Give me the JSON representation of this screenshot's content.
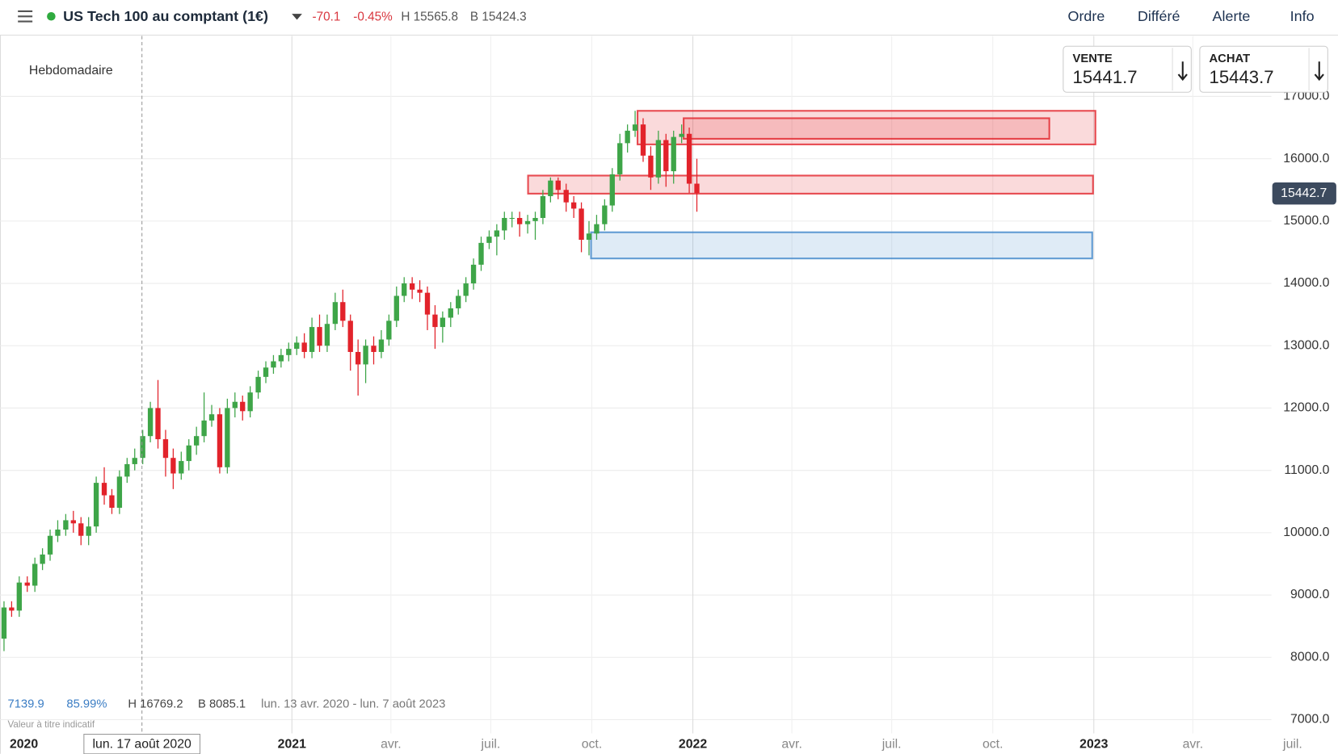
{
  "header": {
    "instrument": "US Tech 100 au comptant (1€)",
    "change": "-70.1",
    "change_pct": "-0.45%",
    "high": "H 15565.8",
    "low": "B 15424.3",
    "menu": [
      "Ordre",
      "Différé",
      "Alerte",
      "Info"
    ]
  },
  "timeframe": "Hebdomadaire",
  "quotes": [
    {
      "label": "VENTE",
      "price": "15441.7"
    },
    {
      "label": "ACHAT",
      "price": "15443.7"
    }
  ],
  "stats": [
    "7139.9",
    "85.99%",
    "H 16769.2",
    "B 8085.1",
    "lun. 13 avr. 2020 - lun. 7 août 2023"
  ],
  "disclaimer": "Valeur à titre indicatif",
  "chart_data": {
    "type": "candlestick",
    "up_color": "#3ea548",
    "down_color": "#e2232b",
    "grid": true,
    "x": [
      2020.282,
      2020.301,
      2020.32,
      2020.34,
      2020.359,
      2020.378,
      2020.397,
      2020.416,
      2020.436,
      2020.455,
      2020.474,
      2020.493,
      2020.512,
      2020.532,
      2020.551,
      2020.57,
      2020.589,
      2020.608,
      2020.628,
      2020.647,
      2020.666,
      2020.685,
      2020.704,
      2020.724,
      2020.743,
      2020.762,
      2020.781,
      2020.8,
      2020.82,
      2020.839,
      2020.858,
      2020.877,
      2020.896,
      2020.916,
      2020.935,
      2020.954,
      2020.973,
      2020.992,
      2021.012,
      2021.031,
      2021.05,
      2021.069,
      2021.088,
      2021.108,
      2021.127,
      2021.146,
      2021.165,
      2021.184,
      2021.204,
      2021.223,
      2021.242,
      2021.261,
      2021.28,
      2021.3,
      2021.319,
      2021.338,
      2021.357,
      2021.376,
      2021.396,
      2021.415,
      2021.434,
      2021.453,
      2021.472,
      2021.492,
      2021.511,
      2021.53,
      2021.549,
      2021.568,
      2021.588,
      2021.607,
      2021.626,
      2021.645,
      2021.664,
      2021.684,
      2021.703,
      2021.722,
      2021.741,
      2021.76,
      2021.78,
      2021.799,
      2021.818,
      2021.837,
      2021.856,
      2021.876,
      2021.895,
      2021.914,
      2021.933,
      2021.952,
      2021.972,
      2021.991,
      2022.01
    ],
    "open": [
      8300,
      8800,
      8750,
      9200,
      9150,
      9500,
      9650,
      9950,
      10050,
      10200,
      10150,
      9950,
      10100,
      10800,
      10600,
      10400,
      10900,
      11100,
      11200,
      11550,
      12000,
      11500,
      11200,
      10950,
      11150,
      11400,
      11550,
      11800,
      11900,
      11050,
      12000,
      12100,
      11950,
      12250,
      12500,
      12650,
      12750,
      12850,
      12950,
      13050,
      12900,
      13300,
      13000,
      13350,
      13700,
      13400,
      12900,
      12700,
      13000,
      12900,
      13100,
      13400,
      13800,
      14000,
      13900,
      13850,
      13500,
      13300,
      13450,
      13600,
      13800,
      14000,
      14300,
      14650,
      14750,
      14850,
      15050,
      15050,
      14950,
      15000,
      15050,
      15400,
      15650,
      15500,
      15300,
      15200,
      14700,
      14800,
      14950,
      15250,
      15750,
      16250,
      16450,
      16550,
      16050,
      15700,
      16300,
      15800,
      16350,
      16400,
      15600
    ],
    "high": [
      8900,
      8900,
      9300,
      9300,
      9600,
      9750,
      10050,
      10200,
      10300,
      10350,
      10250,
      10250,
      10900,
      11050,
      10700,
      11000,
      11200,
      11350,
      11650,
      12100,
      12450,
      11650,
      11350,
      11300,
      11500,
      11700,
      12250,
      12050,
      12000,
      12150,
      12250,
      12200,
      12350,
      12600,
      12750,
      12850,
      12950,
      13050,
      13150,
      13200,
      13450,
      13500,
      13500,
      13850,
      13900,
      13500,
      13100,
      13100,
      13150,
      13250,
      13500,
      13950,
      14100,
      14100,
      14050,
      13950,
      13650,
      13550,
      13700,
      13900,
      14100,
      14400,
      14750,
      14850,
      14950,
      15150,
      15150,
      15150,
      15100,
      15150,
      15500,
      15700,
      15700,
      15600,
      15400,
      15300,
      15000,
      15100,
      15350,
      15850,
      16400,
      16550,
      16769,
      16650,
      16200,
      16450,
      16400,
      16450,
      16550,
      16500,
      16000
    ],
    "low": [
      8100,
      8650,
      8650,
      9050,
      9050,
      9400,
      9550,
      9850,
      9950,
      10000,
      9800,
      9800,
      10000,
      10450,
      10300,
      10300,
      10800,
      11000,
      11100,
      11450,
      11350,
      10900,
      10700,
      10850,
      11000,
      11250,
      11450,
      11700,
      10950,
      10950,
      11850,
      11800,
      11850,
      12150,
      12400,
      12550,
      12650,
      12750,
      12850,
      12800,
      12800,
      12900,
      12900,
      13250,
      13300,
      12600,
      12200,
      12400,
      12700,
      12800,
      13000,
      13300,
      13700,
      13750,
      13700,
      13250,
      12950,
      13050,
      13300,
      13500,
      13700,
      13900,
      14200,
      14550,
      14450,
      14700,
      14900,
      14750,
      14800,
      14700,
      14950,
      15300,
      15350,
      15150,
      15050,
      14500,
      14450,
      14700,
      14850,
      15150,
      15650,
      16100,
      16350,
      15950,
      15500,
      15600,
      15550,
      15600,
      16250,
      15450,
      15150
    ],
    "close": [
      8800,
      8750,
      9200,
      9150,
      9500,
      9650,
      9950,
      10050,
      10200,
      10150,
      9950,
      10100,
      10800,
      10600,
      10400,
      10900,
      11100,
      11200,
      11550,
      12000,
      11500,
      11200,
      10950,
      11150,
      11400,
      11550,
      11800,
      11900,
      11050,
      12000,
      12100,
      11950,
      12250,
      12500,
      12650,
      12750,
      12850,
      12950,
      13050,
      12900,
      13300,
      13000,
      13350,
      13700,
      13400,
      12900,
      12700,
      13000,
      12900,
      13100,
      13400,
      13800,
      14000,
      13900,
      13850,
      13500,
      13300,
      13450,
      13600,
      13800,
      14000,
      14300,
      14650,
      14750,
      14850,
      15050,
      15050,
      14950,
      15000,
      15050,
      15400,
      15650,
      15500,
      15300,
      15200,
      14700,
      14800,
      14950,
      15250,
      15750,
      16250,
      16450,
      16550,
      16050,
      15700,
      16300,
      15800,
      16350,
      16400,
      15600,
      15450
    ],
    "zones": [
      {
        "x": [
          2021.862,
          2023.004
        ],
        "y": [
          16230,
          16769
        ],
        "color": "#e2232b"
      },
      {
        "x": [
          2021.977,
          2022.889
        ],
        "y": [
          16320,
          16650
        ],
        "color": "#e2232b"
      },
      {
        "x": [
          2021.589,
          2022.998
        ],
        "y": [
          15440,
          15730
        ],
        "color": "#e2232b"
      },
      {
        "x": [
          2021.746,
          2022.996
        ],
        "y": [
          14400,
          14820
        ],
        "color": "#3f86c9"
      }
    ],
    "last_price": 15442.7,
    "crosshair": {
      "x": 2020.626,
      "label": "lun. 17 août 2020"
    },
    "xlim": [
      2020.272,
      2023.443
    ],
    "ylim": [
      6780,
      17970
    ],
    "xticks": [
      {
        "value": 2020,
        "label": "2020"
      },
      {
        "value": 2021,
        "label": "2021"
      },
      {
        "value": 2021.247,
        "label": "avr."
      },
      {
        "value": 2021.496,
        "label": "juil."
      },
      {
        "value": 2021.748,
        "label": "oct."
      },
      {
        "value": 2022,
        "label": "2022"
      },
      {
        "value": 2022.247,
        "label": "avr."
      },
      {
        "value": 2022.496,
        "label": "juil."
      },
      {
        "value": 2022.748,
        "label": "oct."
      },
      {
        "value": 2023,
        "label": "2023"
      },
      {
        "value": 2023.247,
        "label": "avr."
      },
      {
        "value": 2023.496,
        "label": "juil."
      }
    ],
    "yticks": [
      {
        "value": 7000,
        "label": "7000.0"
      },
      {
        "value": 8000,
        "label": "8000.0"
      },
      {
        "value": 9000,
        "label": "9000.0"
      },
      {
        "value": 10000,
        "label": "10000.0"
      },
      {
        "value": 11000,
        "label": "11000.0"
      },
      {
        "value": 12000,
        "label": "12000.0"
      },
      {
        "value": 13000,
        "label": "13000.0"
      },
      {
        "value": 14000,
        "label": "14000.0"
      },
      {
        "value": 15000,
        "label": "15000.0"
      },
      {
        "value": 16000,
        "label": "16000.0"
      },
      {
        "value": 17000,
        "label": "17000.0"
      }
    ]
  }
}
